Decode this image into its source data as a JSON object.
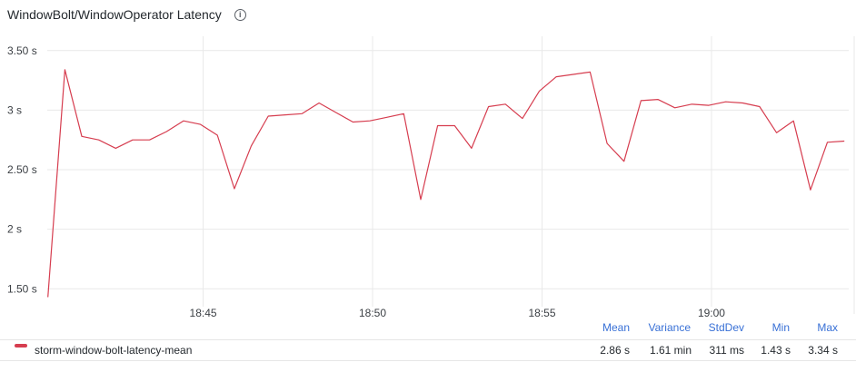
{
  "panel": {
    "title": "WindowBolt/WindowOperator Latency",
    "info_icon": "info-circle-icon"
  },
  "chart_data": {
    "type": "line",
    "title": "WindowBolt/WindowOperator Latency",
    "ylim": [
      1.35,
      3.62
    ],
    "y_ticks": [
      1.5,
      2,
      2.5,
      3,
      3.5
    ],
    "y_tick_labels": [
      "1.50 s",
      "2 s",
      "2.50 s",
      "3 s",
      "3.50 s"
    ],
    "x_tick_labels": [
      "18:45",
      "18:50",
      "18:55",
      "19:00"
    ],
    "x_ticks": [
      15,
      20,
      25,
      30
    ],
    "xlim": [
      10.4,
      34.05
    ],
    "grid": true,
    "color": "#d63d4f",
    "series": [
      {
        "name": "storm-window-bolt-latency-mean",
        "x": [
          10.42,
          10.92,
          11.42,
          11.92,
          12.42,
          12.92,
          13.42,
          13.92,
          14.42,
          14.92,
          15.42,
          15.92,
          16.42,
          16.92,
          17.42,
          17.92,
          18.42,
          18.92,
          19.42,
          19.92,
          20.42,
          20.92,
          21.42,
          21.92,
          22.42,
          22.92,
          23.42,
          23.92,
          24.42,
          24.92,
          25.42,
          25.92,
          26.42,
          26.92,
          27.42,
          27.92,
          28.42,
          28.92,
          29.42,
          29.92,
          30.42,
          30.92,
          31.42,
          31.92,
          32.42,
          32.92,
          33.42,
          33.92
        ],
        "values": [
          1.43,
          3.34,
          2.78,
          2.75,
          2.68,
          2.75,
          2.75,
          2.82,
          2.91,
          2.88,
          2.79,
          2.34,
          2.7,
          2.95,
          2.96,
          2.97,
          3.06,
          2.98,
          2.9,
          2.91,
          2.94,
          2.97,
          2.25,
          2.87,
          2.87,
          2.68,
          3.03,
          3.05,
          2.93,
          3.16,
          3.28,
          3.3,
          3.32,
          2.72,
          2.57,
          3.08,
          3.09,
          3.02,
          3.05,
          3.04,
          3.07,
          3.06,
          3.03,
          2.81,
          2.91,
          2.33,
          2.73,
          2.74
        ]
      }
    ]
  },
  "legend": {
    "headers": [
      "Mean",
      "Variance",
      "StdDev",
      "Min",
      "Max"
    ],
    "rows": [
      {
        "name": "storm-window-bolt-latency-mean",
        "color": "#d63d4f",
        "mean": "2.86 s",
        "variance": "1.61 min",
        "stddev": "311 ms",
        "min": "1.43 s",
        "max": "3.34 s"
      }
    ]
  }
}
